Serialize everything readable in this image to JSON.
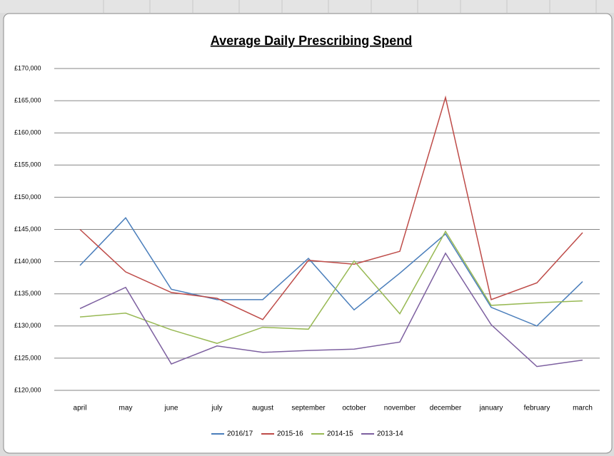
{
  "chart_data": {
    "type": "line",
    "title": "Average Daily Prescribing Spend",
    "categories": [
      "april",
      "may",
      "june",
      "july",
      "august",
      "september",
      "october",
      "november",
      "december",
      "january",
      "february",
      "march"
    ],
    "series": [
      {
        "name": "2016/17",
        "color": "#4a7ebb",
        "values": [
          139400,
          146800,
          135700,
          134100,
          134100,
          140500,
          132500,
          138200,
          144300,
          132900,
          130000,
          136900
        ]
      },
      {
        "name": "2015-16",
        "color": "#be4b48",
        "values": [
          145000,
          138400,
          135200,
          134300,
          131000,
          140200,
          139600,
          141600,
          165500,
          134100,
          136700,
          144500
        ]
      },
      {
        "name": "2014-15",
        "color": "#98b954",
        "values": [
          131400,
          132000,
          129400,
          127300,
          129800,
          129500,
          140100,
          131900,
          144700,
          133200,
          133600,
          133900
        ]
      },
      {
        "name": "2013-14",
        "color": "#7d60a0",
        "values": [
          132700,
          136000,
          124100,
          126900,
          125900,
          126200,
          126400,
          127500,
          141300,
          130200,
          123700,
          124700
        ]
      }
    ],
    "ylim": [
      120000,
      170000
    ],
    "yticks": [
      {
        "value": 120000,
        "label": "£120,000"
      },
      {
        "value": 125000,
        "label": "£125,000"
      },
      {
        "value": 130000,
        "label": "£130,000"
      },
      {
        "value": 135000,
        "label": "£135,000"
      },
      {
        "value": 140000,
        "label": "£140,000"
      },
      {
        "value": 145000,
        "label": "£145,000"
      },
      {
        "value": 150000,
        "label": "£150,000"
      },
      {
        "value": 155000,
        "label": "£155,000"
      },
      {
        "value": 160000,
        "label": "£160,000"
      },
      {
        "value": 165000,
        "label": "£165,000"
      },
      {
        "value": 170000,
        "label": "£170,000"
      }
    ],
    "grid": true,
    "legend": "bottom"
  }
}
